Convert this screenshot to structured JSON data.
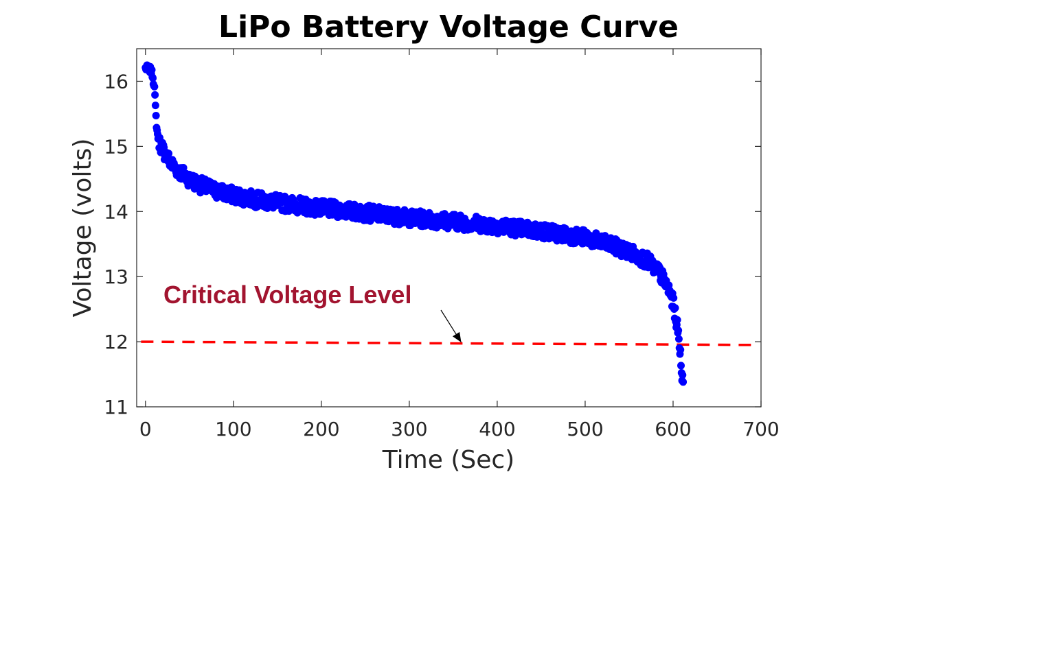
{
  "chart_data": {
    "type": "scatter",
    "title": "LiPo Battery Voltage Curve",
    "xlabel": "Time (Sec)",
    "ylabel": "Voltage (volts)",
    "xlim": [
      -10,
      700
    ],
    "ylim": [
      11,
      16.5
    ],
    "xticks": [
      0,
      100,
      200,
      300,
      400,
      500,
      600,
      700
    ],
    "yticks": [
      11,
      12,
      13,
      14,
      15,
      16
    ],
    "grid": false,
    "series": [
      {
        "color": "#0000FF",
        "marker": "filled-circle",
        "curve": [
          [
            0,
            16.2
          ],
          [
            3,
            16.2
          ],
          [
            6,
            16.17
          ],
          [
            8,
            16.1
          ],
          [
            9,
            16.0
          ],
          [
            10,
            15.95
          ],
          [
            11,
            15.7
          ],
          [
            12,
            15.45
          ],
          [
            13,
            15.25
          ],
          [
            15,
            15.1
          ],
          [
            18,
            15.0
          ],
          [
            22,
            14.9
          ],
          [
            30,
            14.72
          ],
          [
            40,
            14.6
          ],
          [
            50,
            14.5
          ],
          [
            60,
            14.42
          ],
          [
            80,
            14.32
          ],
          [
            100,
            14.25
          ],
          [
            130,
            14.17
          ],
          [
            160,
            14.12
          ],
          [
            200,
            14.05
          ],
          [
            250,
            13.98
          ],
          [
            300,
            13.9
          ],
          [
            350,
            13.85
          ],
          [
            400,
            13.78
          ],
          [
            450,
            13.7
          ],
          [
            500,
            13.6
          ],
          [
            530,
            13.48
          ],
          [
            550,
            13.38
          ],
          [
            570,
            13.25
          ],
          [
            585,
            13.05
          ],
          [
            595,
            12.8
          ],
          [
            600,
            12.6
          ],
          [
            604,
            12.3
          ],
          [
            607,
            12.0
          ],
          [
            609,
            11.7
          ],
          [
            611,
            11.4
          ],
          [
            612,
            11.1
          ]
        ],
        "noise": 0.12
      }
    ],
    "reference_line": {
      "style": "dashed",
      "color": "#FF0000",
      "x": [
        -5,
        695
      ],
      "y": [
        12.0,
        11.95
      ]
    },
    "annotation": {
      "text": "Critical Voltage Level",
      "color": "#A2142F",
      "arrow_to": [
        370,
        11.97
      ]
    }
  }
}
